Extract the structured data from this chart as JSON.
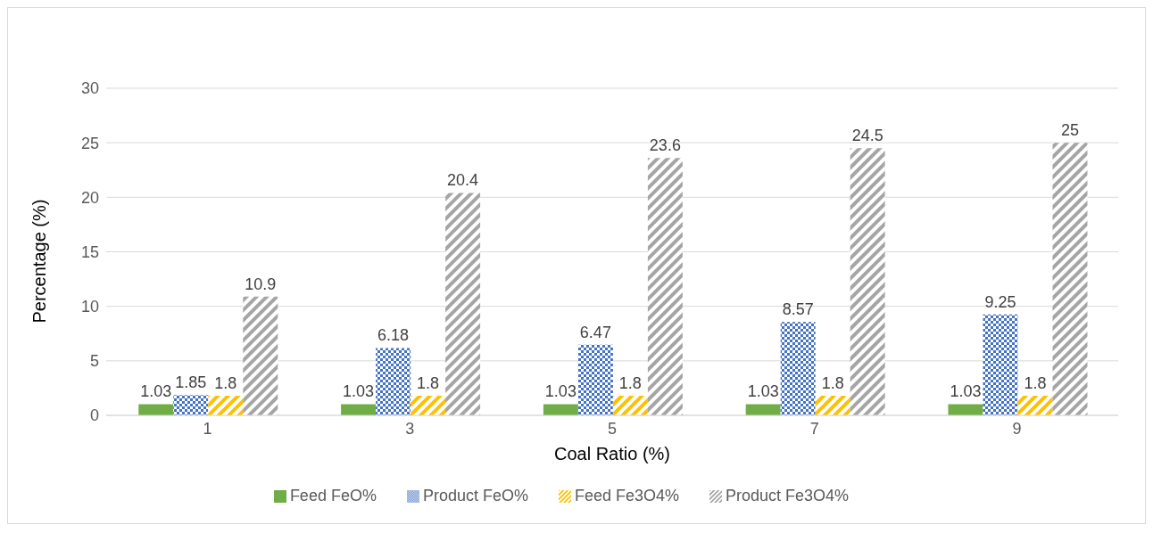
{
  "chart_data": {
    "type": "bar",
    "xlabel": "Coal Ratio (%)",
    "ylabel": "Percentage (%)",
    "categories": [
      "1",
      "3",
      "5",
      "7",
      "9"
    ],
    "series": [
      {
        "name": "Feed FeO%",
        "color": "#70ad47",
        "values": [
          1.03,
          1.03,
          1.03,
          1.03,
          1.03
        ]
      },
      {
        "name": "Product FeO%",
        "color": "#4472c4",
        "values": [
          1.85,
          6.18,
          6.47,
          8.57,
          9.25
        ]
      },
      {
        "name": "Feed Fe3O4%",
        "color": "#ffc000",
        "values": [
          1.8,
          1.8,
          1.8,
          1.8,
          1.8
        ]
      },
      {
        "name": "Product Fe3O4%",
        "color": "#a5a5a5",
        "values": [
          10.9,
          20.4,
          23.6,
          24.5,
          25
        ]
      }
    ],
    "ylim": [
      0,
      30
    ],
    "yticks": [
      0,
      5,
      10,
      15,
      20,
      25,
      30
    ],
    "grid": "y",
    "legend": "bottom",
    "data_labels": true
  }
}
